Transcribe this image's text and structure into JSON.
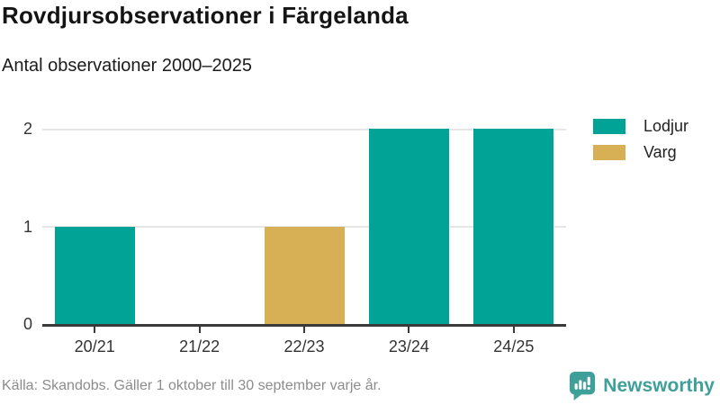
{
  "header": {
    "title": "Rovdjursobservationer i Färgelanda",
    "subtitle": "Antal observationer 2000–2025"
  },
  "chart_data": {
    "type": "bar",
    "title": "Rovdjursobservationer i Färgelanda",
    "subtitle": "Antal observationer 2000–2025",
    "categories": [
      "20/21",
      "21/22",
      "22/23",
      "23/24",
      "24/25"
    ],
    "series": [
      {
        "name": "Lodjur",
        "color": "#00a396",
        "values": [
          1,
          0,
          0,
          2,
          2
        ]
      },
      {
        "name": "Varg",
        "color": "#d7af54",
        "values": [
          0,
          0,
          1,
          0,
          0
        ]
      }
    ],
    "xlabel": "",
    "ylabel": "",
    "ylim": [
      0,
      2
    ],
    "yticks": [
      0,
      1,
      2
    ],
    "grid": true,
    "legend_position": "top-right",
    "axis_color": "#3a3a3a",
    "grid_color": "#e6e6e6"
  },
  "footer": {
    "source": "Källa: Skandobs. Gäller 1 oktober till 30 september varje år.",
    "brand": "Newsworthy",
    "brand_color": "#3f9f99"
  }
}
